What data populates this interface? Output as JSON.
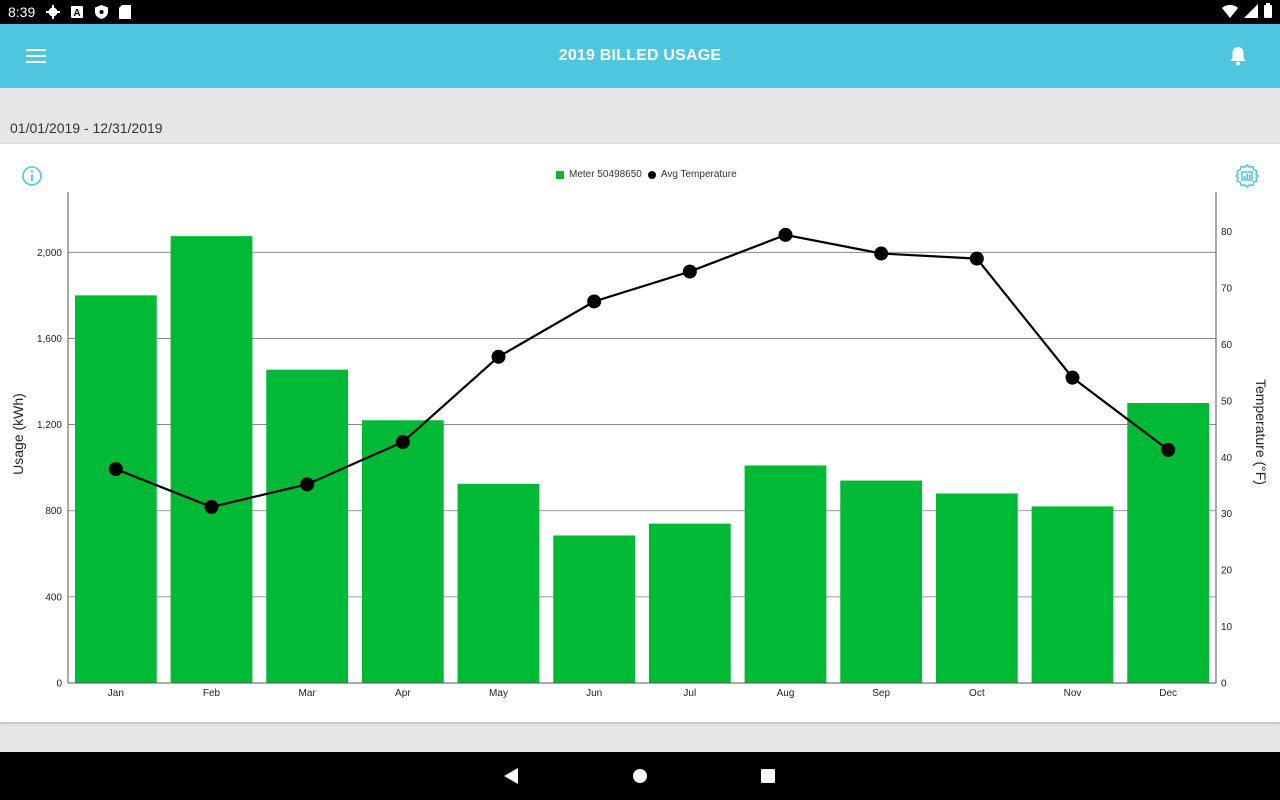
{
  "status_bar": {
    "time": "8:39",
    "icons": [
      "gear-icon",
      "a-icon",
      "shield-icon",
      "sd-card-icon",
      "wifi-icon",
      "signal-icon",
      "battery-icon"
    ]
  },
  "app_bar": {
    "title": "2019 BILLED USAGE",
    "menu_icon": "menu-icon",
    "notification_icon": "bell-icon",
    "background_color": "#4ec6df"
  },
  "date_range": "01/01/2019 - 12/31/2019",
  "card": {
    "info_icon": "info-icon",
    "settings_icon": "chart-settings-icon",
    "accent_color": "#4ec6df"
  },
  "chart_data": {
    "type": "bar",
    "categories": [
      "Jan",
      "Feb",
      "Mar",
      "Apr",
      "May",
      "Jun",
      "Jul",
      "Aug",
      "Sep",
      "Oct",
      "Nov",
      "Dec"
    ],
    "series": [
      {
        "name": "Meter 50498650",
        "type": "bar",
        "axis": "left",
        "color": "#00b934",
        "values": [
          1800,
          2075,
          1455,
          1220,
          925,
          685,
          740,
          1010,
          940,
          880,
          820,
          1300
        ]
      },
      {
        "name": "Avg Temperature",
        "type": "line",
        "axis": "right",
        "color": "#000000",
        "values": [
          37.9,
          31.2,
          35.2,
          42.7,
          57.8,
          67.6,
          72.9,
          79.4,
          76.1,
          75.2,
          54.1,
          41.3
        ]
      }
    ],
    "ylabel": "Usage (kWh)",
    "ylim": [
      0,
      2280
    ],
    "yticks": [
      0,
      400,
      800,
      1200,
      1600,
      2000
    ],
    "ytick_labels": [
      "0",
      "400",
      "800",
      "1,200",
      "1,600",
      "2,000"
    ],
    "y2label": "Temperature (°F)",
    "y2lim": [
      0,
      87
    ],
    "y2ticks": [
      0,
      10,
      20,
      30,
      40,
      50,
      60,
      70,
      80
    ],
    "grid": true,
    "legend_position": "top-center"
  },
  "nav_bar": {
    "icons": [
      "back-icon",
      "home-icon",
      "recents-icon"
    ]
  }
}
